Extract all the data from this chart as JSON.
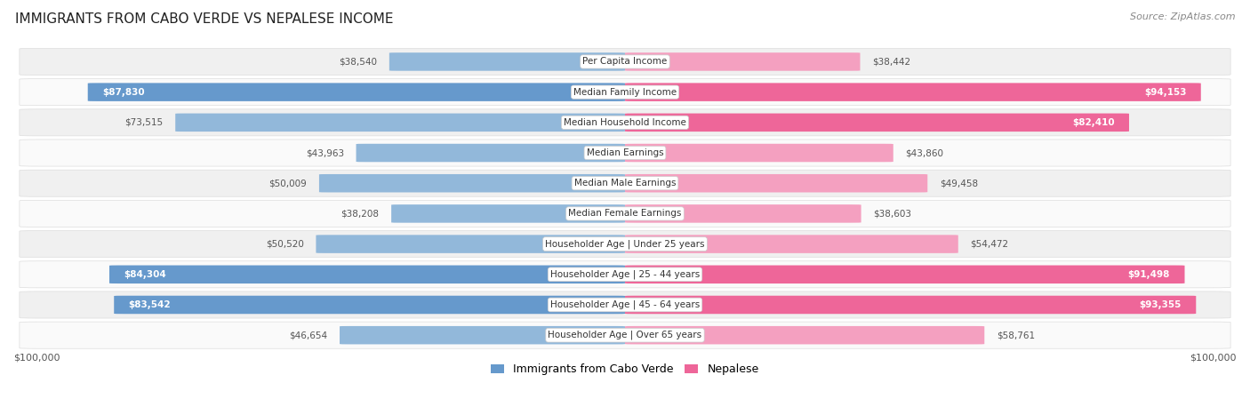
{
  "title": "IMMIGRANTS FROM CABO VERDE VS NEPALESE INCOME",
  "source": "Source: ZipAtlas.com",
  "categories": [
    "Per Capita Income",
    "Median Family Income",
    "Median Household Income",
    "Median Earnings",
    "Median Male Earnings",
    "Median Female Earnings",
    "Householder Age | Under 25 years",
    "Householder Age | 25 - 44 years",
    "Householder Age | 45 - 64 years",
    "Householder Age | Over 65 years"
  ],
  "cabo_verde_values": [
    38540,
    87830,
    73515,
    43963,
    50009,
    38208,
    50520,
    84304,
    83542,
    46654
  ],
  "nepalese_values": [
    38442,
    94153,
    82410,
    43860,
    49458,
    38603,
    54472,
    91498,
    93355,
    58761
  ],
  "cabo_verde_labels": [
    "$38,540",
    "$87,830",
    "$73,515",
    "$43,963",
    "$50,009",
    "$38,208",
    "$50,520",
    "$84,304",
    "$83,542",
    "$46,654"
  ],
  "nepalese_labels": [
    "$38,442",
    "$94,153",
    "$82,410",
    "$43,860",
    "$49,458",
    "$38,603",
    "$54,472",
    "$91,498",
    "$93,355",
    "$58,761"
  ],
  "cabo_verde_color": "#92b8da",
  "cabo_verde_color_strong": "#6699cc",
  "nepalese_color": "#f4a0c0",
  "nepalese_color_strong": "#ee6699",
  "max_value": 100000,
  "background_color": "#ffffff",
  "row_bg_odd": "#f0f0f0",
  "row_bg_even": "#fafafa",
  "title_fontsize": 11,
  "label_fontsize": 8,
  "legend_label_cabo": "Immigrants from Cabo Verde",
  "legend_label_nepalese": "Nepalese"
}
